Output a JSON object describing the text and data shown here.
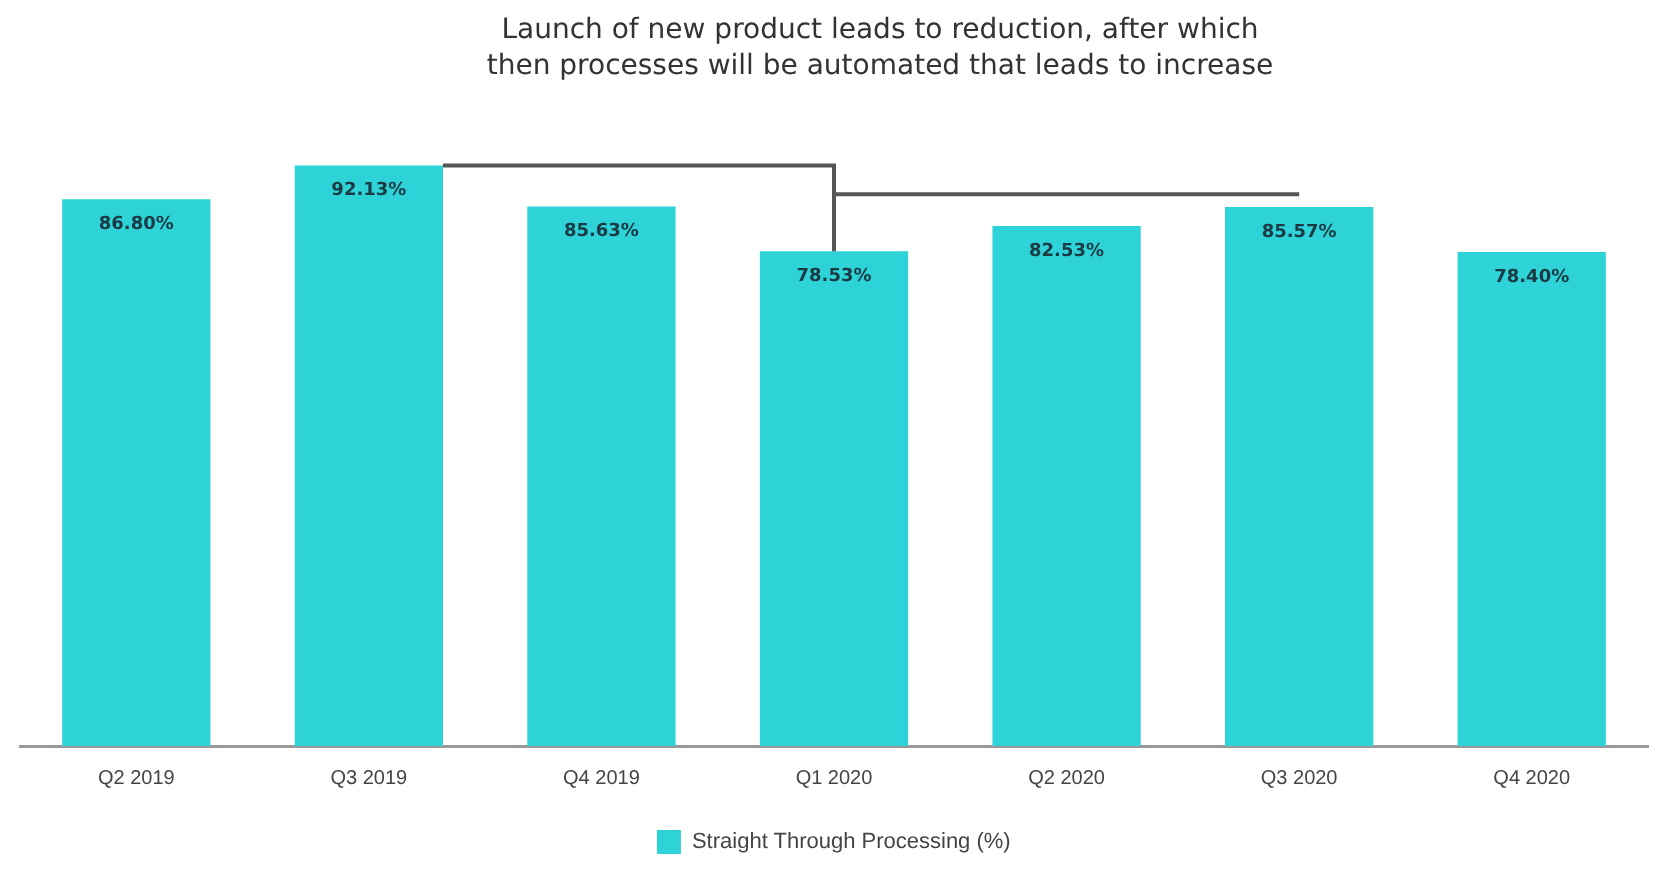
{
  "chart_data": {
    "type": "bar",
    "categories": [
      "Q2 2019",
      "Q3 2019",
      "Q4 2019",
      "Q1 2020",
      "Q2 2020",
      "Q3 2020",
      "Q4 2020"
    ],
    "series": [
      {
        "name": "Straight Through Processing (%)",
        "color": "#2ed3d8",
        "values": [
          86.8,
          92.13,
          85.63,
          78.53,
          82.53,
          85.57,
          78.4
        ],
        "value_labels": [
          "86.80%",
          "92.13%",
          "85.63%",
          "78.53%",
          "82.53%",
          "85.57%",
          "78.40%"
        ]
      }
    ],
    "annotations": [
      "Launch of new product leads to reduction, after which\nthen processes will be automated that leads to increase"
    ],
    "grid": false,
    "legend": "bottom"
  }
}
